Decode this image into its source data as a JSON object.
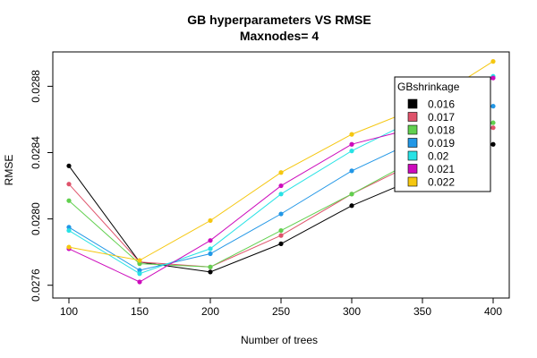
{
  "chart_data": {
    "type": "line",
    "title": "GB hyperparameters VS RMSE",
    "subtitle": "Maxnodes= 4",
    "xlabel": "Number of trees",
    "ylabel": "RMSE",
    "x": [
      100,
      150,
      200,
      250,
      300,
      350,
      400
    ],
    "xlim": [
      100,
      400
    ],
    "ylim": [
      0.02755,
      0.02905
    ],
    "yticks": [
      0.0276,
      0.028,
      0.0284,
      0.0288
    ],
    "ytick_labels": [
      "0.0276",
      "0.0280",
      "0.0284",
      "0.0288"
    ],
    "xtick_labels": [
      "100",
      "150",
      "200",
      "250",
      "300",
      "350",
      "400"
    ],
    "grid": false,
    "legend": {
      "title": "GBshrinkage",
      "placement": "top-right"
    },
    "series": [
      {
        "name": "0.016",
        "color": "#000000",
        "values": [
          0.02832,
          0.02774,
          0.02768,
          0.02785,
          0.02808,
          0.02826,
          0.02845
        ]
      },
      {
        "name": "0.017",
        "color": "#DF536B",
        "values": [
          0.02821,
          0.02774,
          0.02771,
          0.0279,
          0.02815,
          0.02836,
          0.02855
        ]
      },
      {
        "name": "0.018",
        "color": "#61D04F",
        "values": [
          0.02811,
          0.02773,
          0.02771,
          0.02793,
          0.02815,
          0.02838,
          0.02858
        ]
      },
      {
        "name": "0.019",
        "color": "#2297E6",
        "values": [
          0.02795,
          0.02769,
          0.02779,
          0.02803,
          0.02829,
          0.02849,
          0.02868
        ]
      },
      {
        "name": "0.02",
        "color": "#28E2E5",
        "values": [
          0.02793,
          0.02767,
          0.02782,
          0.02815,
          0.02841,
          0.02862,
          0.02886
        ]
      },
      {
        "name": "0.021",
        "color": "#CD0BBC",
        "values": [
          0.02782,
          0.02762,
          0.02787,
          0.0282,
          0.02845,
          0.02856,
          0.02885
        ]
      },
      {
        "name": "0.022",
        "color": "#F5C710",
        "values": [
          0.02783,
          0.02775,
          0.02799,
          0.02828,
          0.02851,
          0.02868,
          0.02895
        ]
      }
    ]
  }
}
